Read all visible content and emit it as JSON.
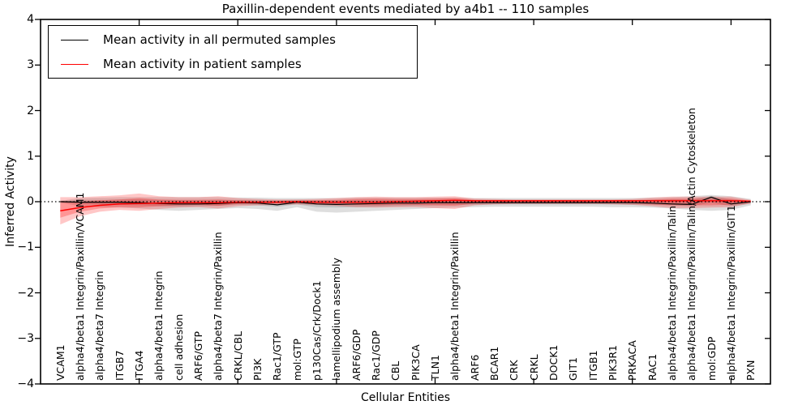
{
  "chart_data": {
    "type": "line",
    "title": "Paxillin-dependent events mediated by a4b1 -- 110 samples",
    "xlabel": "Cellular Entities",
    "ylabel": "Inferred Activity",
    "ylim": [
      -4,
      4
    ],
    "xlim": [
      0,
      37
    ],
    "grid": false,
    "zero_line": "dotted-black",
    "legend_position": "upper left",
    "yticks": [
      4,
      3,
      2,
      1,
      0,
      -1,
      -2,
      -3,
      -4
    ],
    "ytick_labels": [
      "4",
      "3",
      "2",
      "1",
      "0",
      "−1",
      "−2",
      "−3",
      "−4"
    ],
    "xticks_unlabeled": [
      5,
      10,
      15,
      20,
      25,
      30,
      35
    ],
    "legend": [
      {
        "label": "Mean activity in all permuted samples",
        "color": "#000000"
      },
      {
        "label": "Mean activity in patient samples",
        "color": "#ff0000"
      }
    ],
    "categories": [
      "VCAM1",
      "alpha4/beta1 Integrin/Paxillin/VCAM1",
      "alpha4/beta7 Integrin",
      "ITGB7",
      "ITGA4",
      "alpha4/beta1 Integrin",
      "cell adhesion",
      "ARF6/GTP",
      "alpha4/beta7 Integrin/Paxillin",
      "CRKL/CBL",
      "PI3K",
      "Rac1/GTP",
      "mol:GTP",
      "p130Cas/Crk/Dock1",
      "lamellipodium assembly",
      "ARF6/GDP",
      "Rac1/GDP",
      "CBL",
      "PIK3CA",
      "TLN1",
      "alpha4/beta1 Integrin/Paxillin",
      "ARF6",
      "BCAR1",
      "CRK",
      "CRKL",
      "DOCK1",
      "GIT1",
      "ITGB1",
      "PIK3R1",
      "PRKACA",
      "RAC1",
      "alpha4/beta1 Integrin/Paxillin/Talin",
      "alpha4/beta1 Integrin/Paxillin/Talin/Actin Cytoskeleton",
      "mol:GDP",
      "alpha4/beta1 Integrin/Paxillin/GIT1",
      "PXN"
    ],
    "series": [
      {
        "name": "Mean activity in all permuted samples",
        "color": "#000000",
        "width": 1.2,
        "values": [
          0,
          -0.01,
          -0.01,
          -0.01,
          -0.02,
          -0.04,
          -0.05,
          -0.05,
          -0.04,
          -0.02,
          -0.03,
          -0.07,
          -0.01,
          -0.05,
          -0.06,
          -0.05,
          -0.04,
          -0.03,
          -0.03,
          -0.02,
          -0.02,
          -0.02,
          -0.02,
          -0.02,
          -0.02,
          -0.02,
          -0.02,
          -0.02,
          -0.02,
          -0.02,
          -0.03,
          -0.05,
          -0.06,
          0.1,
          -0.05,
          0
        ]
      },
      {
        "name": "Mean activity in patient samples",
        "color": "#ff0000",
        "width": 1.5,
        "values": [
          -0.2,
          -0.13,
          -0.08,
          -0.05,
          -0.04,
          -0.03,
          -0.02,
          -0.02,
          -0.02,
          -0.01,
          -0.01,
          -0.01,
          0,
          -0.01,
          -0.01,
          -0.01,
          -0.01,
          0,
          0.01,
          0.02,
          0.03,
          0.02,
          0.02,
          0.02,
          0.02,
          0.02,
          0.02,
          0.02,
          0.02,
          0.02,
          0.02,
          0.02,
          0.02,
          0.02,
          0.02,
          0.01
        ]
      }
    ],
    "bands": [
      {
        "name": "permuted-samples-range",
        "color": "#000000",
        "opacity": 0.13,
        "lo": [
          -0.02,
          -0.1,
          -0.12,
          -0.13,
          -0.15,
          -0.18,
          -0.2,
          -0.18,
          -0.16,
          -0.14,
          -0.16,
          -0.2,
          -0.12,
          -0.22,
          -0.24,
          -0.22,
          -0.2,
          -0.18,
          -0.16,
          -0.14,
          -0.13,
          -0.12,
          -0.11,
          -0.11,
          -0.11,
          -0.11,
          -0.11,
          -0.11,
          -0.12,
          -0.12,
          -0.13,
          -0.15,
          -0.18,
          -0.2,
          -0.18,
          -0.08
        ],
        "hi": [
          0.02,
          0.08,
          0.09,
          0.1,
          0.1,
          0.1,
          0.1,
          0.1,
          0.1,
          0.09,
          0.09,
          0.08,
          0.08,
          0.08,
          0.08,
          0.09,
          0.09,
          0.09,
          0.09,
          0.09,
          0.09,
          0.08,
          0.08,
          0.08,
          0.08,
          0.08,
          0.08,
          0.08,
          0.08,
          0.08,
          0.09,
          0.1,
          0.12,
          0.15,
          0.12,
          0.06
        ]
      },
      {
        "name": "permuted-samples-std",
        "color": "#000000",
        "opacity": 0.13,
        "lo": [
          -0.01,
          -0.05,
          -0.06,
          -0.07,
          -0.08,
          -0.1,
          -0.11,
          -0.1,
          -0.09,
          -0.07,
          -0.08,
          -0.11,
          -0.06,
          -0.12,
          -0.13,
          -0.12,
          -0.11,
          -0.1,
          -0.09,
          -0.08,
          -0.07,
          -0.07,
          -0.06,
          -0.06,
          -0.06,
          -0.06,
          -0.06,
          -0.06,
          -0.06,
          -0.07,
          -0.07,
          -0.08,
          -0.1,
          -0.02,
          -0.1,
          -0.04
        ],
        "hi": [
          0.01,
          0.04,
          0.04,
          0.05,
          0.05,
          0.04,
          0.04,
          0.04,
          0.04,
          0.04,
          0.04,
          0.03,
          0.04,
          0.03,
          0.03,
          0.04,
          0.04,
          0.04,
          0.04,
          0.04,
          0.04,
          0.04,
          0.04,
          0.04,
          0.04,
          0.04,
          0.04,
          0.04,
          0.04,
          0.04,
          0.04,
          0.05,
          0.05,
          0.13,
          0.05,
          0.02
        ]
      },
      {
        "name": "patient-samples-range",
        "color": "#ff0000",
        "opacity": 0.22,
        "lo": [
          -0.5,
          -0.32,
          -0.22,
          -0.18,
          -0.2,
          -0.16,
          -0.13,
          -0.12,
          -0.15,
          -0.1,
          -0.08,
          -0.07,
          -0.06,
          -0.07,
          -0.09,
          -0.12,
          -0.13,
          -0.12,
          -0.12,
          -0.14,
          -0.16,
          -0.08,
          -0.06,
          -0.05,
          -0.05,
          -0.05,
          -0.05,
          -0.05,
          -0.06,
          -0.07,
          -0.1,
          -0.14,
          -0.14,
          -0.13,
          -0.12,
          -0.04
        ],
        "hi": [
          0.1,
          0.1,
          0.12,
          0.14,
          0.18,
          0.12,
          0.1,
          0.1,
          0.12,
          0.08,
          0.06,
          0.05,
          0.05,
          0.06,
          0.08,
          0.1,
          0.11,
          0.1,
          0.1,
          0.11,
          0.12,
          0.07,
          0.06,
          0.05,
          0.05,
          0.05,
          0.05,
          0.05,
          0.05,
          0.06,
          0.09,
          0.11,
          0.11,
          0.11,
          0.11,
          0.04
        ]
      },
      {
        "name": "patient-samples-std",
        "color": "#ff0000",
        "opacity": 0.25,
        "lo": [
          -0.35,
          -0.22,
          -0.15,
          -0.12,
          -0.13,
          -0.1,
          -0.08,
          -0.07,
          -0.09,
          -0.05,
          -0.04,
          -0.04,
          -0.03,
          -0.04,
          -0.05,
          -0.07,
          -0.08,
          -0.07,
          -0.07,
          -0.08,
          -0.09,
          -0.04,
          -0.03,
          -0.03,
          -0.03,
          -0.03,
          -0.03,
          -0.03,
          -0.03,
          -0.04,
          -0.06,
          -0.08,
          -0.08,
          -0.08,
          -0.07,
          -0.02
        ],
        "hi": [
          0.02,
          0,
          0.03,
          0.05,
          0.08,
          0.05,
          0.04,
          0.04,
          0.05,
          0.03,
          0.02,
          0.02,
          0.02,
          0.03,
          0.04,
          0.06,
          0.07,
          0.06,
          0.06,
          0.07,
          0.08,
          0.04,
          0.03,
          0.03,
          0.03,
          0.03,
          0.03,
          0.03,
          0.03,
          0.03,
          0.05,
          0.07,
          0.07,
          0.07,
          0.07,
          0.02
        ]
      }
    ]
  }
}
